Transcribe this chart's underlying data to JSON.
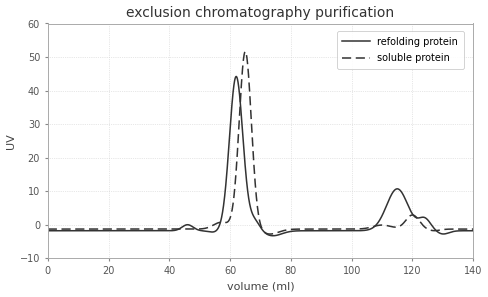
{
  "title": "exclusion chromatography purification",
  "xlabel": "volume (ml)",
  "ylabel": "UV",
  "xlim": [
    0,
    140
  ],
  "ylim": [
    -10,
    60
  ],
  "xticks": [
    0,
    20,
    40,
    60,
    80,
    100,
    120,
    140
  ],
  "yticks": [
    -10,
    0,
    10,
    20,
    30,
    40,
    50,
    60
  ],
  "legend": [
    "refolding protein",
    "soluble protein"
  ],
  "background_color": "#ffffff",
  "plot_bg_color": "#ffffff",
  "line_color": "#333333",
  "grid_color": "#d0d0d0",
  "border_color": "#aaaaaa",
  "title_fontsize": 10,
  "label_fontsize": 8,
  "tick_fontsize": 7
}
